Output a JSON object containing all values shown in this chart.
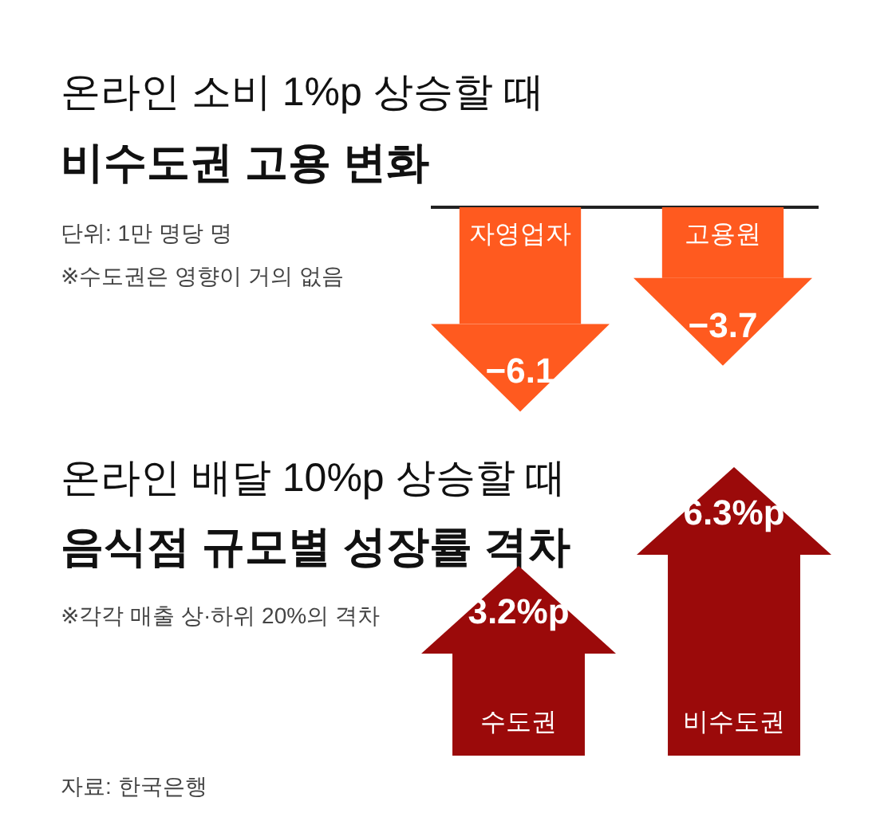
{
  "chart_data": [
    {
      "type": "bar",
      "title": "온라인 소비 1%p 상승할 때",
      "subtitle": "비수도권 고용 변화",
      "categories": [
        "자영업자",
        "고용원"
      ],
      "values": [
        -6.1,
        -3.7
      ],
      "value_labels": [
        "−6.1",
        "−3.7"
      ],
      "color": "#ff5a1f",
      "annotations": [
        "단위: 1만 명당 명",
        "※수도권은 영향이 거의 없음"
      ]
    },
    {
      "type": "bar",
      "title": "온라인 배달 10%p 상승할 때",
      "subtitle": "음식점 규모별 성장률 격차",
      "categories": [
        "수도권",
        "비수도권"
      ],
      "values": [
        3.2,
        6.3
      ],
      "value_labels": [
        "3.2%p",
        "6.3%p"
      ],
      "color": "#9b0a0a",
      "annotations": [
        "※각각 매출 상·하위 20%의 격차",
        "자료: 한국은행"
      ]
    }
  ]
}
